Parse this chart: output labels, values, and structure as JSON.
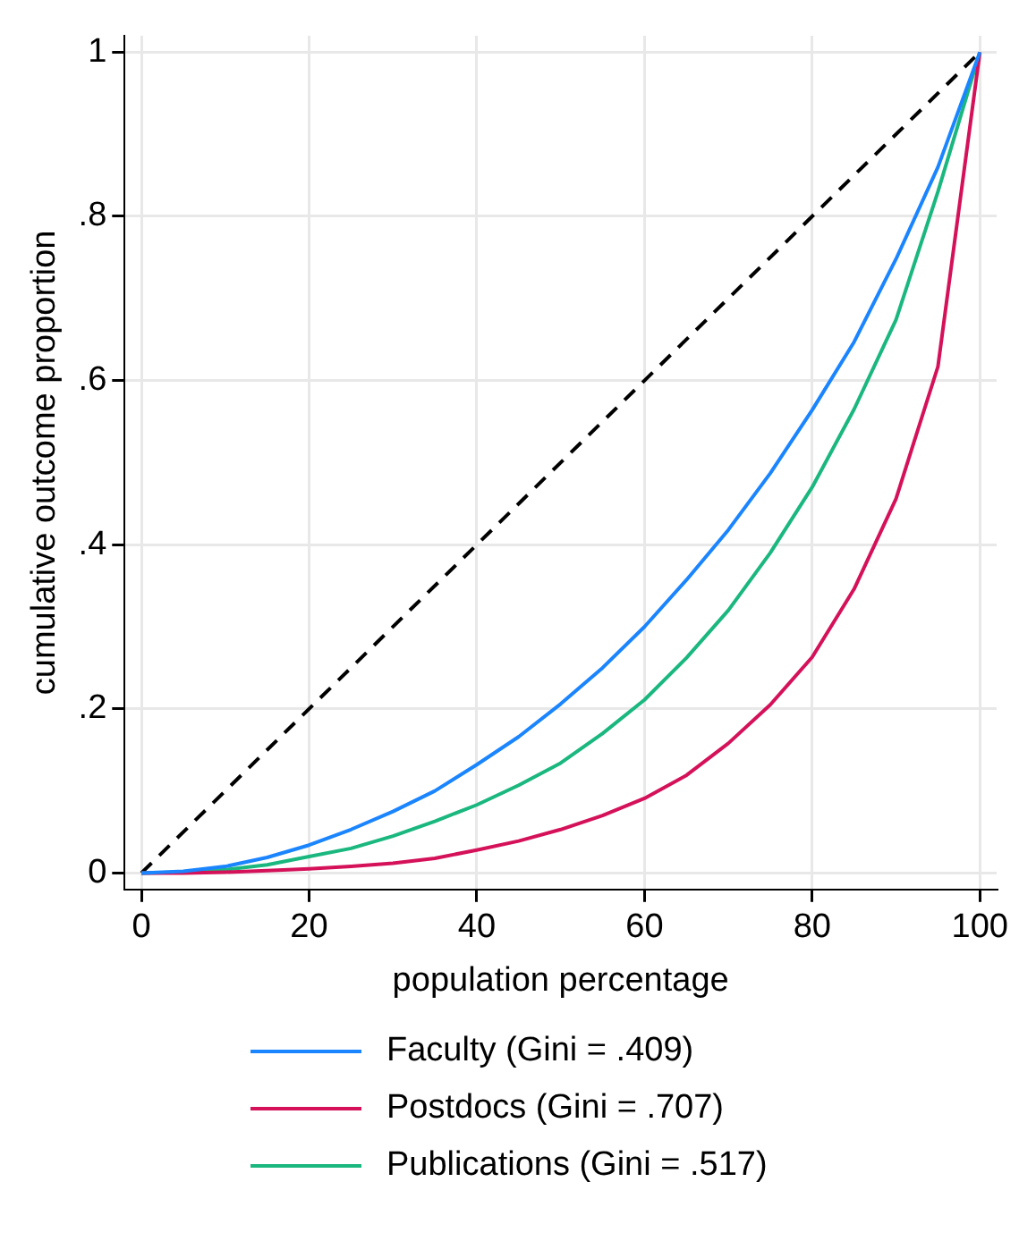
{
  "chart_data": {
    "type": "line",
    "xlabel": "population percentage",
    "ylabel": "cumulative outcome proportion",
    "x": [
      0,
      5,
      10,
      15,
      20,
      25,
      30,
      35,
      40,
      45,
      50,
      55,
      60,
      65,
      70,
      75,
      80,
      85,
      90,
      95,
      100
    ],
    "series": [
      {
        "name": "Faculty (Gini = .409)",
        "color": "#1a85ff",
        "values": [
          0,
          0.002,
          0.008,
          0.019,
          0.034,
          0.053,
          0.075,
          0.1,
          0.132,
          0.166,
          0.206,
          0.25,
          0.3,
          0.357,
          0.418,
          0.487,
          0.564,
          0.647,
          0.748,
          0.86,
          1
        ]
      },
      {
        "name": "Postdocs (Gini = .707)",
        "color": "#d41159",
        "values": [
          0,
          0,
          0.001,
          0.003,
          0.005,
          0.008,
          0.012,
          0.018,
          0.028,
          0.039,
          0.053,
          0.07,
          0.091,
          0.119,
          0.158,
          0.205,
          0.263,
          0.346,
          0.456,
          0.617,
          1
        ]
      },
      {
        "name": "Publications (Gini = .517)",
        "color": "#1ab77f",
        "values": [
          0,
          0.001,
          0.004,
          0.01,
          0.02,
          0.03,
          0.045,
          0.063,
          0.083,
          0.107,
          0.134,
          0.17,
          0.211,
          0.262,
          0.32,
          0.39,
          0.47,
          0.565,
          0.674,
          0.83,
          1
        ]
      },
      {
        "color": "#000000",
        "line_style": "dashed",
        "x": [
          0,
          100
        ],
        "values": [
          0,
          1
        ]
      }
    ],
    "xlim": [
      -2,
      102
    ],
    "xticks": [
      0,
      20,
      40,
      60,
      80,
      100
    ],
    "ylim": [
      -0.02,
      1.02
    ],
    "yticks": [
      0,
      {
        "value": 0.2,
        "label": ".2"
      },
      {
        "value": 0.4,
        "label": ".4"
      },
      {
        "value": 0.6,
        "label": ".6"
      },
      {
        "value": 0.8,
        "label": ".8"
      },
      1
    ],
    "grid": true,
    "legend": "bottom",
    "marker": "none",
    "line_style": "solid"
  }
}
